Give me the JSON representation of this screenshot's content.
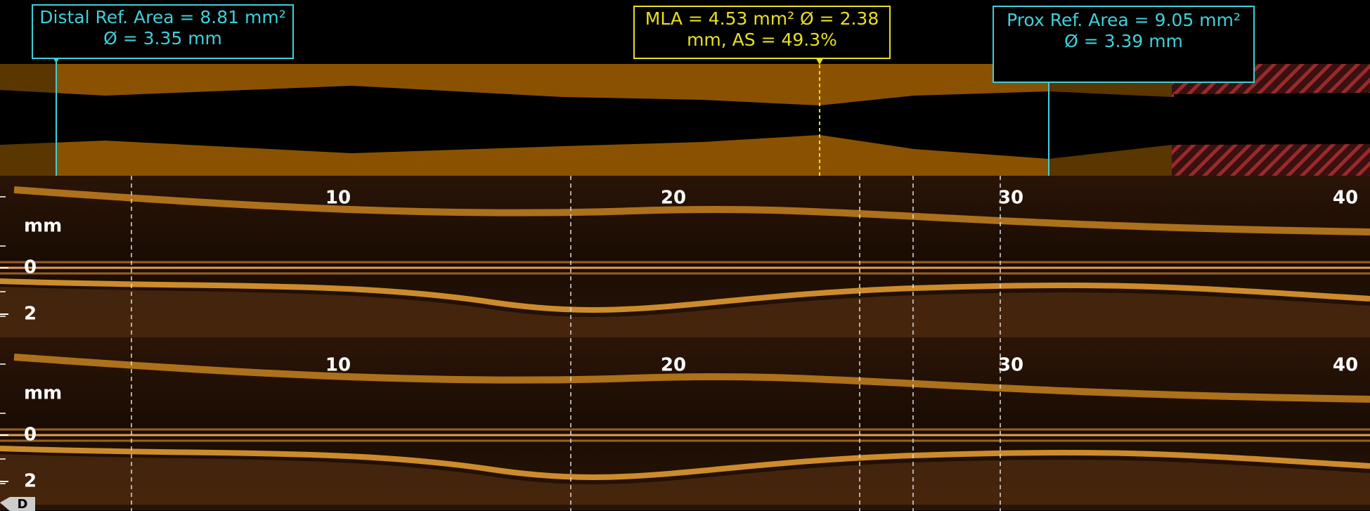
{
  "annotations": {
    "distal_ref": "Distal Ref. Area = 8.81 mm² Ø = 3.35 mm",
    "mla": "MLA = 4.53 mm² Ø = 2.38 mm, AS = 49.3%",
    "prox_ref": "Prox Ref. Area = 9.05 mm² Ø = 3.39 mm"
  },
  "views": [
    {
      "x_ticks": [
        10,
        20,
        30,
        40
      ],
      "unit": "mm",
      "y_ticks": [
        0,
        2
      ]
    },
    {
      "x_ticks": [
        10,
        20,
        30,
        40
      ],
      "unit": "mm",
      "y_ticks": [
        0,
        2
      ]
    }
  ],
  "marker": "D"
}
